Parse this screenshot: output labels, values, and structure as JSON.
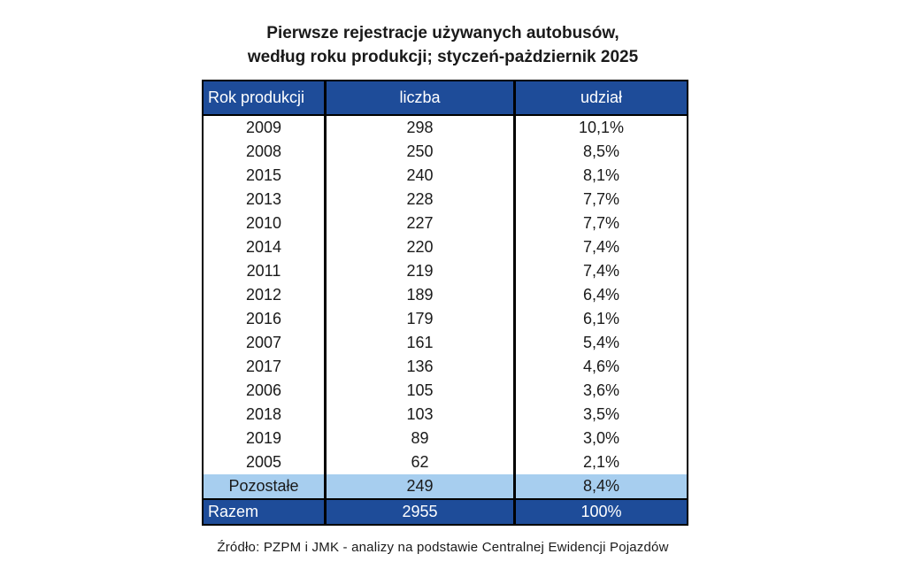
{
  "title": {
    "line1": "Pierwsze rejestracje używanych autobusów,",
    "line2": "według roku produkcji; styczeń-pażdziernik 2025"
  },
  "table": {
    "headers": {
      "year": "Rok produkcji",
      "count": "liczba",
      "share": "udział"
    },
    "rows": [
      {
        "year": "2009",
        "count": "298",
        "share": "10,1%"
      },
      {
        "year": "2008",
        "count": "250",
        "share": "8,5%"
      },
      {
        "year": "2015",
        "count": "240",
        "share": "8,1%"
      },
      {
        "year": "2013",
        "count": "228",
        "share": "7,7%"
      },
      {
        "year": "2010",
        "count": "227",
        "share": "7,7%"
      },
      {
        "year": "2014",
        "count": "220",
        "share": "7,4%"
      },
      {
        "year": "2011",
        "count": "219",
        "share": "7,4%"
      },
      {
        "year": "2012",
        "count": "189",
        "share": "6,4%"
      },
      {
        "year": "2016",
        "count": "179",
        "share": "6,1%"
      },
      {
        "year": "2007",
        "count": "161",
        "share": "5,4%"
      },
      {
        "year": "2017",
        "count": "136",
        "share": "4,6%"
      },
      {
        "year": "2006",
        "count": "105",
        "share": "3,6%"
      },
      {
        "year": "2018",
        "count": "103",
        "share": "3,5%"
      },
      {
        "year": "2019",
        "count": "89",
        "share": "3,0%"
      },
      {
        "year": "2005",
        "count": "62",
        "share": "2,1%"
      }
    ],
    "pozostale": {
      "label": "Pozostałe",
      "count": "249",
      "share": "8,4%"
    },
    "razem": {
      "label": "Razem",
      "count": "2955",
      "share": "100%"
    }
  },
  "footer": {
    "source": "Źródło: PZPM i JMK - analizy na podstawie Centralnej Ewidencji Pojazdów"
  },
  "colors": {
    "page-bg": "#FFFFFF",
    "header-bg": "#1E4C99",
    "header-text": "#FFFFFF",
    "highlight-bg": "#A7CEEF",
    "border": "#000000",
    "text": "#1A1A1A"
  },
  "chart_data": {
    "type": "table",
    "title": "Pierwsze rejestracje używanych autobusów, według roku produkcji; styczeń-pażdziernik 2025",
    "columns": [
      "Rok produkcji",
      "liczba",
      "udział"
    ],
    "rows": [
      [
        "2009",
        298,
        10.1
      ],
      [
        "2008",
        250,
        8.5
      ],
      [
        "2015",
        240,
        8.1
      ],
      [
        "2013",
        228,
        7.7
      ],
      [
        "2010",
        227,
        7.7
      ],
      [
        "2014",
        220,
        7.4
      ],
      [
        "2011",
        219,
        7.4
      ],
      [
        "2012",
        189,
        6.4
      ],
      [
        "2016",
        179,
        6.1
      ],
      [
        "2007",
        161,
        5.4
      ],
      [
        "2017",
        136,
        4.6
      ],
      [
        "2006",
        105,
        3.6
      ],
      [
        "2018",
        103,
        3.5
      ],
      [
        "2019",
        89,
        3.0
      ],
      [
        "2005",
        62,
        2.1
      ],
      [
        "Pozostałe",
        249,
        8.4
      ],
      [
        "Razem",
        2955,
        100
      ]
    ],
    "share_unit": "%",
    "source": "Źródło: PZPM i JMK - analizy na podstawie Centralnej Ewidencji Pojazdów"
  }
}
